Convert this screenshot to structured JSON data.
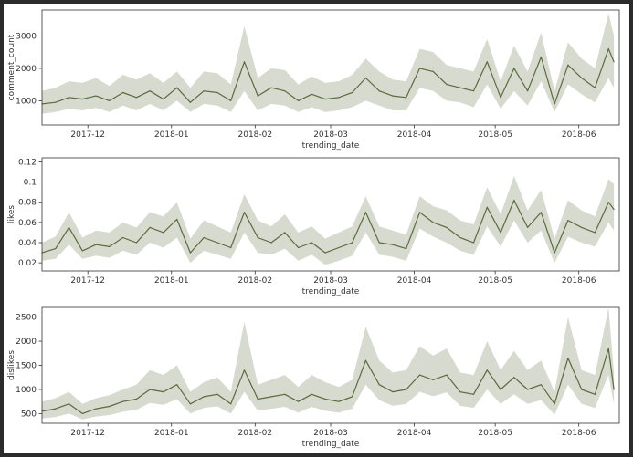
{
  "colors": {
    "line": "#5a6b3d",
    "band": "#c9cdbd",
    "band_opacity": 0.75
  },
  "chart_data": [
    {
      "type": "line",
      "xlabel": "trending_date",
      "ylabel": "comment_count",
      "xlim": [
        "2017-11-14",
        "2018-06-16"
      ],
      "ylim": [
        250,
        3800
      ],
      "x_ticks": [
        "2017-12",
        "2018-01",
        "2018-02",
        "2018-03",
        "2018-04",
        "2018-05",
        "2018-06"
      ],
      "y_ticks": [
        1000,
        2000,
        3000
      ],
      "series": [
        {
          "x": [
            "2017-11-14",
            "2017-11-19",
            "2017-11-24",
            "2017-11-29",
            "2017-12-04",
            "2017-12-09",
            "2017-12-14",
            "2017-12-19",
            "2017-12-24",
            "2017-12-29",
            "2018-01-03",
            "2018-01-08",
            "2018-01-13",
            "2018-01-18",
            "2018-01-23",
            "2018-01-28",
            "2018-02-02",
            "2018-02-07",
            "2018-02-12",
            "2018-02-17",
            "2018-02-22",
            "2018-02-27",
            "2018-03-04",
            "2018-03-09",
            "2018-03-14",
            "2018-03-19",
            "2018-03-24",
            "2018-03-29",
            "2018-04-03",
            "2018-04-08",
            "2018-04-13",
            "2018-04-18",
            "2018-04-23",
            "2018-04-28",
            "2018-05-03",
            "2018-05-08",
            "2018-05-13",
            "2018-05-18",
            "2018-05-23",
            "2018-05-28",
            "2018-06-02",
            "2018-06-07",
            "2018-06-12",
            "2018-06-14"
          ],
          "y": [
            900,
            950,
            1100,
            1050,
            1150,
            1000,
            1250,
            1100,
            1300,
            1050,
            1400,
            950,
            1300,
            1250,
            1000,
            2200,
            1150,
            1400,
            1300,
            1000,
            1200,
            1050,
            1100,
            1250,
            1700,
            1300,
            1150,
            1100,
            2000,
            1900,
            1500,
            1400,
            1300,
            2200,
            1100,
            2000,
            1300,
            2350,
            900,
            2100,
            1700,
            1400,
            2600,
            2200
          ],
          "lower": [
            600,
            650,
            750,
            700,
            780,
            650,
            850,
            700,
            900,
            700,
            1000,
            650,
            900,
            850,
            650,
            1300,
            700,
            900,
            850,
            650,
            800,
            650,
            700,
            800,
            1000,
            850,
            700,
            700,
            1400,
            1300,
            1000,
            950,
            800,
            1500,
            750,
            1300,
            850,
            1600,
            650,
            1500,
            1200,
            950,
            1700,
            1400
          ],
          "upper": [
            1300,
            1400,
            1600,
            1550,
            1700,
            1450,
            1800,
            1650,
            1850,
            1550,
            1900,
            1400,
            1900,
            1850,
            1500,
            3300,
            1700,
            2000,
            1950,
            1500,
            1750,
            1550,
            1600,
            1800,
            2300,
            1900,
            1650,
            1600,
            2600,
            2500,
            2100,
            2000,
            1900,
            2900,
            1600,
            2700,
            1900,
            3100,
            1300,
            2800,
            2300,
            2000,
            3700,
            3000
          ]
        }
      ]
    },
    {
      "type": "line",
      "xlabel": "trending_date",
      "ylabel": "likes",
      "xlim": [
        "2017-11-14",
        "2018-06-16"
      ],
      "ylim": [
        0.012,
        0.124
      ],
      "x_ticks": [
        "2017-12",
        "2018-01",
        "2018-02",
        "2018-03",
        "2018-04",
        "2018-05",
        "2018-06"
      ],
      "y_ticks": [
        0.02,
        0.04,
        0.06,
        0.08,
        0.1,
        0.12
      ],
      "series": [
        {
          "x": [
            "2017-11-14",
            "2017-11-19",
            "2017-11-24",
            "2017-11-29",
            "2017-12-04",
            "2017-12-09",
            "2017-12-14",
            "2017-12-19",
            "2017-12-24",
            "2017-12-29",
            "2018-01-03",
            "2018-01-08",
            "2018-01-13",
            "2018-01-18",
            "2018-01-23",
            "2018-01-28",
            "2018-02-02",
            "2018-02-07",
            "2018-02-12",
            "2018-02-17",
            "2018-02-22",
            "2018-02-27",
            "2018-03-04",
            "2018-03-09",
            "2018-03-14",
            "2018-03-19",
            "2018-03-24",
            "2018-03-29",
            "2018-04-03",
            "2018-04-08",
            "2018-04-13",
            "2018-04-18",
            "2018-04-23",
            "2018-04-28",
            "2018-05-03",
            "2018-05-08",
            "2018-05-13",
            "2018-05-18",
            "2018-05-23",
            "2018-05-28",
            "2018-06-02",
            "2018-06-07",
            "2018-06-12",
            "2018-06-14"
          ],
          "y": [
            0.03,
            0.034,
            0.055,
            0.032,
            0.038,
            0.036,
            0.045,
            0.04,
            0.055,
            0.05,
            0.063,
            0.03,
            0.045,
            0.04,
            0.035,
            0.07,
            0.045,
            0.04,
            0.05,
            0.035,
            0.04,
            0.03,
            0.035,
            0.04,
            0.07,
            0.04,
            0.038,
            0.034,
            0.07,
            0.06,
            0.055,
            0.045,
            0.04,
            0.075,
            0.05,
            0.082,
            0.055,
            0.07,
            0.03,
            0.062,
            0.055,
            0.05,
            0.08,
            0.073
          ],
          "lower": [
            0.022,
            0.024,
            0.038,
            0.024,
            0.027,
            0.025,
            0.032,
            0.028,
            0.04,
            0.035,
            0.045,
            0.02,
            0.032,
            0.028,
            0.024,
            0.05,
            0.03,
            0.028,
            0.034,
            0.022,
            0.028,
            0.018,
            0.022,
            0.027,
            0.05,
            0.028,
            0.026,
            0.022,
            0.054,
            0.046,
            0.04,
            0.032,
            0.028,
            0.056,
            0.036,
            0.062,
            0.04,
            0.052,
            0.02,
            0.046,
            0.04,
            0.036,
            0.06,
            0.052
          ],
          "upper": [
            0.04,
            0.046,
            0.07,
            0.045,
            0.052,
            0.05,
            0.06,
            0.055,
            0.07,
            0.066,
            0.08,
            0.044,
            0.062,
            0.056,
            0.05,
            0.088,
            0.062,
            0.056,
            0.068,
            0.05,
            0.056,
            0.044,
            0.05,
            0.056,
            0.086,
            0.056,
            0.052,
            0.048,
            0.086,
            0.076,
            0.072,
            0.062,
            0.058,
            0.095,
            0.068,
            0.106,
            0.072,
            0.092,
            0.044,
            0.082,
            0.072,
            0.066,
            0.103,
            0.098
          ]
        }
      ]
    },
    {
      "type": "line",
      "xlabel": "trending_date",
      "ylabel": "dislikes",
      "xlim": [
        "2017-11-14",
        "2018-06-16"
      ],
      "ylim": [
        300,
        2700
      ],
      "x_ticks": [
        "2017-12",
        "2018-01",
        "2018-02",
        "2018-03",
        "2018-04",
        "2018-05",
        "2018-06"
      ],
      "y_ticks": [
        500,
        1000,
        1500,
        2000,
        2500
      ],
      "series": [
        {
          "x": [
            "2017-11-14",
            "2017-11-19",
            "2017-11-24",
            "2017-11-29",
            "2017-12-04",
            "2017-12-09",
            "2017-12-14",
            "2017-12-19",
            "2017-12-24",
            "2017-12-29",
            "2018-01-03",
            "2018-01-08",
            "2018-01-13",
            "2018-01-18",
            "2018-01-23",
            "2018-01-28",
            "2018-02-02",
            "2018-02-07",
            "2018-02-12",
            "2018-02-17",
            "2018-02-22",
            "2018-02-27",
            "2018-03-04",
            "2018-03-09",
            "2018-03-14",
            "2018-03-19",
            "2018-03-24",
            "2018-03-29",
            "2018-04-03",
            "2018-04-08",
            "2018-04-13",
            "2018-04-18",
            "2018-04-23",
            "2018-04-28",
            "2018-05-03",
            "2018-05-08",
            "2018-05-13",
            "2018-05-18",
            "2018-05-23",
            "2018-05-28",
            "2018-06-02",
            "2018-06-07",
            "2018-06-12",
            "2018-06-14"
          ],
          "y": [
            550,
            600,
            700,
            500,
            600,
            650,
            750,
            800,
            1000,
            950,
            1100,
            700,
            850,
            900,
            700,
            1400,
            800,
            850,
            900,
            750,
            900,
            800,
            750,
            850,
            1600,
            1100,
            950,
            1000,
            1300,
            1200,
            1300,
            950,
            900,
            1400,
            1000,
            1250,
            1000,
            1100,
            700,
            1650,
            1000,
            900,
            1850,
            1000
          ],
          "lower": [
            400,
            430,
            500,
            380,
            440,
            470,
            540,
            580,
            720,
            680,
            800,
            500,
            620,
            650,
            500,
            950,
            560,
            600,
            640,
            520,
            640,
            560,
            520,
            600,
            1100,
            780,
            660,
            700,
            950,
            860,
            940,
            660,
            620,
            1000,
            700,
            900,
            700,
            780,
            480,
            1100,
            700,
            620,
            1300,
            700
          ],
          "upper": [
            750,
            820,
            950,
            700,
            820,
            880,
            1000,
            1100,
            1400,
            1300,
            1500,
            950,
            1150,
            1250,
            950,
            2400,
            1100,
            1200,
            1300,
            1050,
            1300,
            1150,
            1050,
            1200,
            2300,
            1600,
            1350,
            1400,
            1900,
            1700,
            1850,
            1350,
            1300,
            2000,
            1400,
            1800,
            1400,
            1600,
            950,
            2500,
            1400,
            1300,
            2700,
            1350
          ]
        }
      ]
    }
  ]
}
